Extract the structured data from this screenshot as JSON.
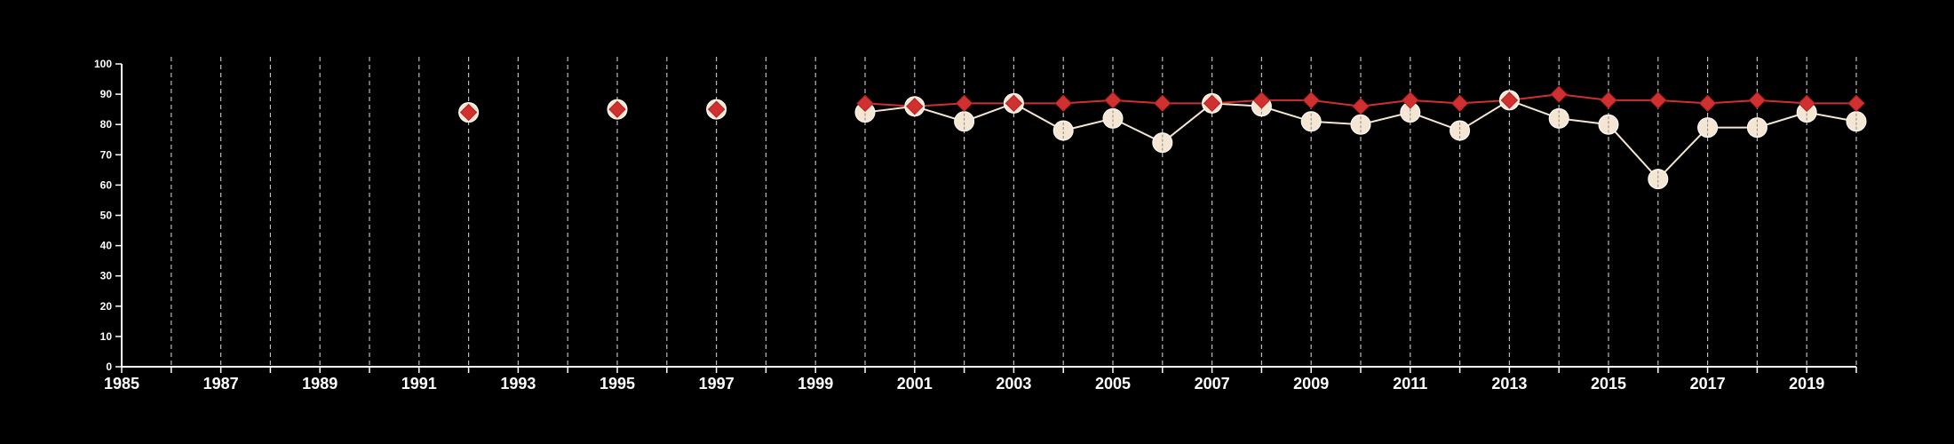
{
  "chart_data": {
    "type": "line",
    "title": "",
    "xlabel": "",
    "ylabel": "",
    "xlim": [
      1985,
      2020
    ],
    "ylim": [
      0,
      100
    ],
    "grid": {
      "vertical": true,
      "horizontal": false,
      "style": "dashed"
    },
    "x_ticks": [
      1985,
      1987,
      1989,
      1991,
      1993,
      1995,
      1997,
      1999,
      2001,
      2003,
      2005,
      2007,
      2009,
      2011,
      2013,
      2015,
      2017,
      2019
    ],
    "y_ticks": [
      0,
      10,
      20,
      30,
      40,
      50,
      60,
      70,
      80,
      90,
      100
    ],
    "colors": {
      "background": "#000000",
      "axis": "#ffffff",
      "grid": "#bbbbbb",
      "series_light": "#f5e6d3",
      "series_red": "#d03030"
    },
    "series": [
      {
        "marker": "circle",
        "color": "#f5e6d3",
        "points": [
          {
            "x": 1992,
            "y": 84
          },
          {
            "x": 1995,
            "y": 85
          },
          {
            "x": 1997,
            "y": 85
          },
          {
            "x": 2000,
            "y": 84
          },
          {
            "x": 2001,
            "y": 86
          },
          {
            "x": 2002,
            "y": 81
          },
          {
            "x": 2003,
            "y": 87
          },
          {
            "x": 2004,
            "y": 78
          },
          {
            "x": 2005,
            "y": 82
          },
          {
            "x": 2006,
            "y": 74
          },
          {
            "x": 2007,
            "y": 87
          },
          {
            "x": 2008,
            "y": 86
          },
          {
            "x": 2009,
            "y": 81
          },
          {
            "x": 2010,
            "y": 80
          },
          {
            "x": 2011,
            "y": 84
          },
          {
            "x": 2012,
            "y": 78
          },
          {
            "x": 2013,
            "y": 88
          },
          {
            "x": 2014,
            "y": 82
          },
          {
            "x": 2015,
            "y": 80
          },
          {
            "x": 2016,
            "y": 62
          },
          {
            "x": 2017,
            "y": 79
          },
          {
            "x": 2018,
            "y": 79
          },
          {
            "x": 2019,
            "y": 84
          },
          {
            "x": 2020,
            "y": 81
          }
        ]
      },
      {
        "marker": "diamond",
        "color": "#d03030",
        "points": [
          {
            "x": 1992,
            "y": 84
          },
          {
            "x": 1995,
            "y": 85
          },
          {
            "x": 1997,
            "y": 85
          },
          {
            "x": 2000,
            "y": 87
          },
          {
            "x": 2001,
            "y": 86
          },
          {
            "x": 2002,
            "y": 87
          },
          {
            "x": 2003,
            "y": 87
          },
          {
            "x": 2004,
            "y": 87
          },
          {
            "x": 2005,
            "y": 88
          },
          {
            "x": 2006,
            "y": 87
          },
          {
            "x": 2007,
            "y": 87
          },
          {
            "x": 2008,
            "y": 88
          },
          {
            "x": 2009,
            "y": 88
          },
          {
            "x": 2010,
            "y": 86
          },
          {
            "x": 2011,
            "y": 88
          },
          {
            "x": 2012,
            "y": 87
          },
          {
            "x": 2013,
            "y": 88
          },
          {
            "x": 2014,
            "y": 90
          },
          {
            "x": 2015,
            "y": 88
          },
          {
            "x": 2016,
            "y": 88
          },
          {
            "x": 2017,
            "y": 87
          },
          {
            "x": 2018,
            "y": 88
          },
          {
            "x": 2019,
            "y": 87
          },
          {
            "x": 2020,
            "y": 87
          }
        ]
      }
    ]
  }
}
